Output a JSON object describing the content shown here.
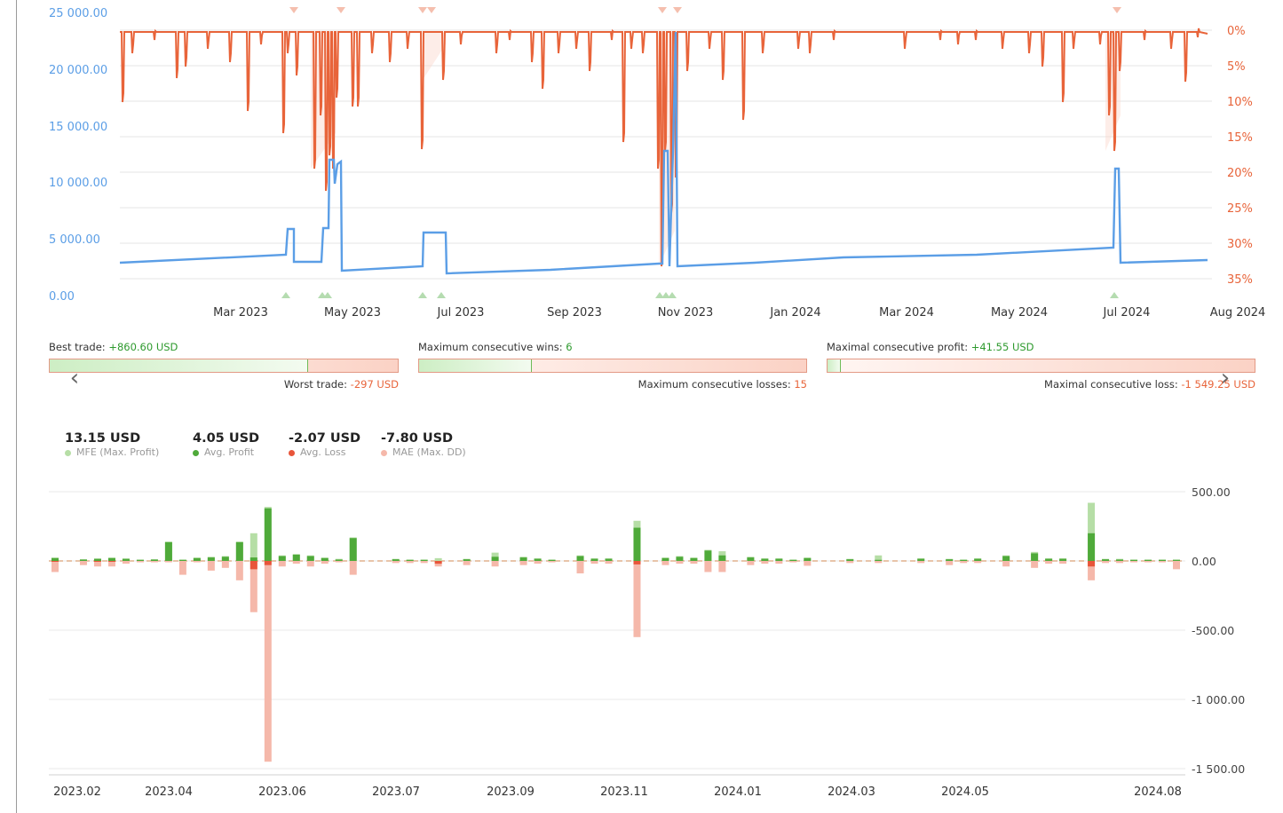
{
  "top_chart": {
    "left_axis_ticks": [
      "25 000.00",
      "20 000.00",
      "15 000.00",
      "10 000.00",
      "5 000.00",
      "0.00"
    ],
    "right_axis_ticks": [
      "0%",
      "5%",
      "10%",
      "15%",
      "20%",
      "25%",
      "30%",
      "35%"
    ],
    "x_ticks": [
      "Mar 2023",
      "May 2023",
      "Jul 2023",
      "Sep 2023",
      "Nov 2023",
      "Jan 2024",
      "Mar 2024",
      "May 2024",
      "Jul 2024",
      "Aug 2024"
    ],
    "colors": {
      "balance": "#5b9ee6",
      "drawdown": "#e8643a"
    }
  },
  "stats": {
    "best_trade_label": "Best trade:",
    "best_trade_value": "+860.60 USD",
    "worst_trade_label": "Worst trade:",
    "worst_trade_value": "-297 USD",
    "best_worst_ratio": 0.74,
    "max_wins_label": "Maximum consecutive wins:",
    "max_wins_value": "6",
    "max_losses_label": "Maximum consecutive losses:",
    "max_losses_value": "15",
    "wins_losses_ratio": 0.29,
    "max_profit_label": "Maximal consecutive profit:",
    "max_profit_value": "+41.55 USD",
    "max_loss_label": "Maximal consecutive loss:",
    "max_loss_value": "-1 549.25 USD",
    "profit_loss_ratio": 0.03
  },
  "legend": [
    {
      "value": "13.15 USD",
      "label": "MFE (Max. Profit)",
      "color": "#b6dea6"
    },
    {
      "value": "4.05 USD",
      "label": "Avg. Profit",
      "color": "#4faa3a"
    },
    {
      "value": "-2.07 USD",
      "label": "Avg. Loss",
      "color": "#e8553a"
    },
    {
      "value": "-7.80 USD",
      "label": "MAE (Max. DD)",
      "color": "#f5b8aa"
    }
  ],
  "chart_data": {
    "type": "bar",
    "y_ticks": [
      "500.00",
      "0.00",
      "-500.00",
      "-1 000.00",
      "-1 500.00"
    ],
    "x_ticks": [
      "2023.02",
      "2023.04",
      "2023.06",
      "2023.07",
      "2023.09",
      "2023.11",
      "2024.01",
      "2024.03",
      "2024.05",
      "2024.08"
    ],
    "ylim": [
      -1500,
      500
    ],
    "series": [
      {
        "name": "MFE (Max. Profit)",
        "values": [
          25,
          0,
          12,
          18,
          25,
          18,
          10,
          12,
          140,
          10,
          25,
          30,
          35,
          140,
          200,
          390,
          40,
          50,
          40,
          25,
          15,
          170,
          0,
          0,
          15,
          10,
          10,
          20,
          0,
          15,
          0,
          60,
          0,
          30,
          20,
          10,
          0,
          40,
          20,
          20,
          0,
          290,
          0,
          25,
          35,
          25,
          80,
          70,
          0,
          30,
          20,
          20,
          10,
          25,
          0,
          0,
          15,
          0,
          40,
          0,
          0,
          20,
          0,
          15,
          10,
          20,
          0,
          40,
          0,
          65,
          20,
          20,
          0,
          420,
          15,
          15,
          10,
          10,
          10,
          10
        ]
      },
      {
        "name": "Avg. Profit",
        "values": [
          20,
          0,
          10,
          15,
          20,
          15,
          8,
          10,
          135,
          8,
          20,
          25,
          30,
          135,
          25,
          380,
          35,
          45,
          35,
          20,
          10,
          165,
          0,
          0,
          12,
          8,
          8,
          0,
          0,
          12,
          0,
          30,
          0,
          25,
          15,
          8,
          0,
          35,
          15,
          15,
          0,
          240,
          0,
          20,
          30,
          20,
          75,
          40,
          0,
          25,
          15,
          15,
          8,
          20,
          0,
          0,
          12,
          0,
          8,
          0,
          0,
          15,
          0,
          12,
          8,
          15,
          0,
          35,
          0,
          55,
          15,
          15,
          0,
          200,
          12,
          10,
          8,
          8,
          8,
          8
        ]
      },
      {
        "name": "Avg. Loss",
        "values": [
          -5,
          0,
          0,
          -5,
          -5,
          0,
          0,
          0,
          0,
          0,
          0,
          0,
          0,
          0,
          -60,
          -30,
          0,
          0,
          0,
          0,
          0,
          0,
          0,
          0,
          0,
          0,
          0,
          -20,
          0,
          0,
          0,
          0,
          0,
          0,
          0,
          0,
          0,
          0,
          0,
          0,
          0,
          -25,
          0,
          0,
          0,
          0,
          0,
          0,
          0,
          0,
          0,
          0,
          0,
          0,
          0,
          0,
          0,
          0,
          0,
          0,
          0,
          0,
          0,
          0,
          0,
          0,
          0,
          0,
          0,
          0,
          0,
          0,
          0,
          -40,
          0,
          0,
          0,
          0,
          0,
          0
        ]
      },
      {
        "name": "MAE (Max. DD)",
        "values": [
          -80,
          0,
          -30,
          -40,
          -40,
          -20,
          -10,
          -10,
          -10,
          -100,
          -10,
          -70,
          -50,
          -140,
          -370,
          -1450,
          -40,
          -20,
          -40,
          -20,
          -10,
          -100,
          0,
          0,
          -15,
          -15,
          -15,
          -40,
          0,
          -30,
          0,
          -40,
          0,
          -30,
          -20,
          -10,
          0,
          -90,
          -20,
          -20,
          0,
          -550,
          0,
          -30,
          -20,
          -20,
          -80,
          -80,
          0,
          -30,
          -20,
          -20,
          -10,
          -35,
          0,
          0,
          -15,
          0,
          -15,
          0,
          0,
          -15,
          0,
          -30,
          -15,
          -15,
          0,
          -40,
          0,
          -50,
          -20,
          -20,
          0,
          -140,
          -15,
          -15,
          -10,
          -10,
          -10,
          -60
        ]
      }
    ]
  }
}
